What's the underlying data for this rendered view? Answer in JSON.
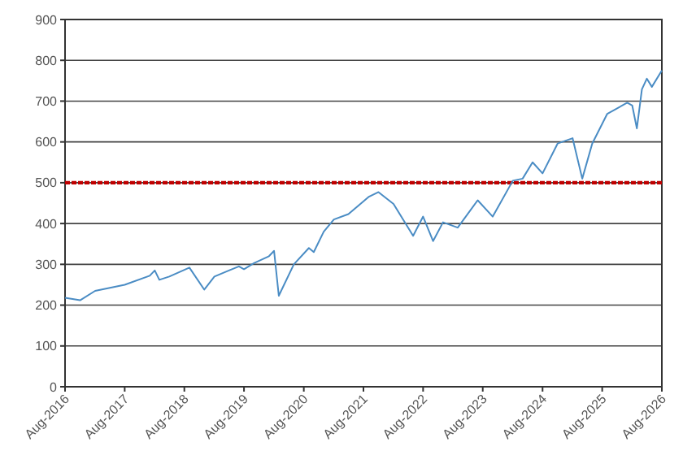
{
  "chart_data": {
    "type": "line",
    "x": [
      "2016-08",
      "2016-11",
      "2017-02",
      "2017-08",
      "2018-01",
      "2018-02",
      "2018-03",
      "2018-05",
      "2018-09",
      "2018-12",
      "2019-02",
      "2019-05",
      "2019-07",
      "2019-08",
      "2019-10",
      "2020-01",
      "2020-02",
      "2020-03",
      "2020-06",
      "2020-09",
      "2020-10",
      "2020-12",
      "2021-02",
      "2021-05",
      "2021-09",
      "2021-11",
      "2022-02",
      "2022-06",
      "2022-08",
      "2022-10",
      "2022-12",
      "2023-03",
      "2023-07",
      "2023-10",
      "2024-02",
      "2024-04",
      "2024-06",
      "2024-08",
      "2024-11",
      "2025-02",
      "2025-04",
      "2025-06",
      "2025-09",
      "2026-01",
      "2026-02",
      "2026-03",
      "2026-04",
      "2026-05",
      "2026-06",
      "2026-08"
    ],
    "series": [
      {
        "color": "#4a8cc4",
        "values": [
          218,
          212,
          235,
          250,
          272,
          285,
          262,
          270,
          292,
          238,
          270,
          285,
          295,
          288,
          303,
          320,
          333,
          223,
          300,
          340,
          330,
          380,
          410,
          423,
          465,
          477,
          448,
          370,
          417,
          357,
          403,
          390,
          457,
          417,
          505,
          510,
          550,
          523,
          596,
          609,
          510,
          596,
          669,
          696,
          689,
          633,
          729,
          755,
          735,
          775
        ]
      }
    ],
    "ylim": [
      0,
      900
    ],
    "yticks": [
      0,
      100,
      200,
      300,
      400,
      500,
      600,
      700,
      800,
      900
    ],
    "xlim": [
      "2016-08",
      "2026-08"
    ],
    "xticks": [
      {
        "value": "2016-08",
        "label": "Aug-2016"
      },
      {
        "value": "2017-08",
        "label": "Aug-2017"
      },
      {
        "value": "2018-08",
        "label": "Aug-2018"
      },
      {
        "value": "2019-08",
        "label": "Aug-2019"
      },
      {
        "value": "2020-08",
        "label": "Aug-2020"
      },
      {
        "value": "2021-08",
        "label": "Aug-2021"
      },
      {
        "value": "2022-08",
        "label": "Aug-2022"
      },
      {
        "value": "2023-08",
        "label": "Aug-2023"
      },
      {
        "value": "2024-08",
        "label": "Aug-2024"
      },
      {
        "value": "2025-08",
        "label": "Aug-2025"
      },
      {
        "value": "2026-08",
        "label": "Aug-2026"
      }
    ],
    "grid": "y",
    "ref_lines": [
      {
        "axis": "y",
        "value": 500,
        "color": "#c00000",
        "line_style": "dashed"
      }
    ]
  }
}
